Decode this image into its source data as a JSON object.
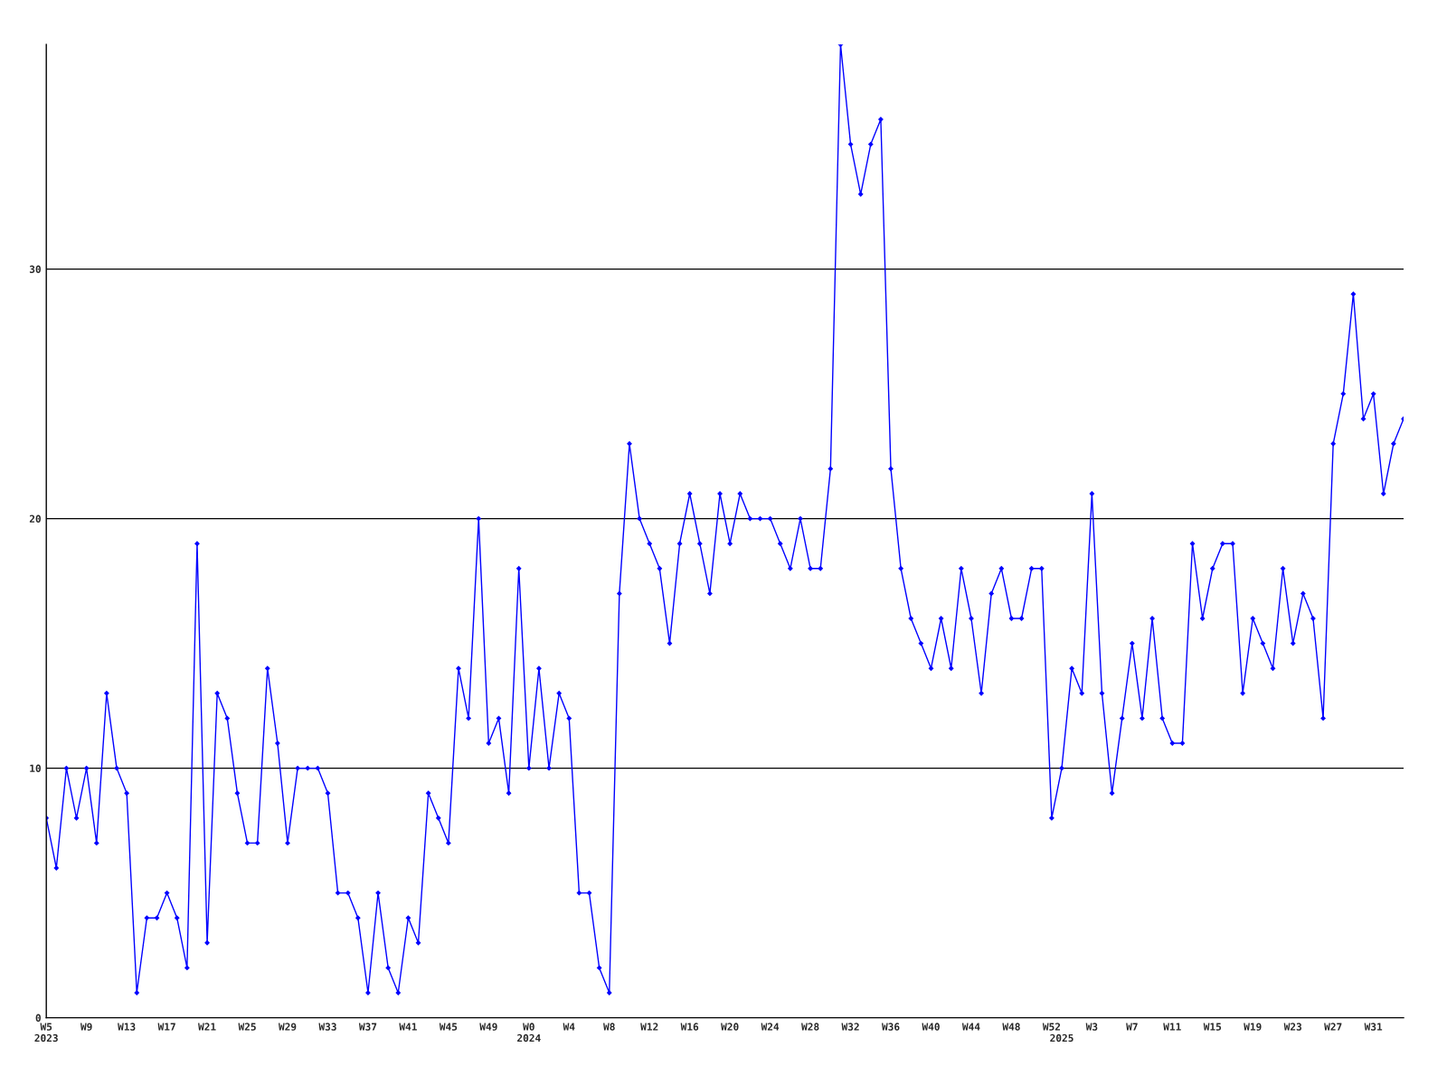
{
  "chart_data": {
    "type": "line",
    "categories": [
      "W5\n2023",
      null,
      null,
      null,
      "W9",
      null,
      null,
      null,
      "W13",
      null,
      null,
      null,
      "W17",
      null,
      null,
      null,
      "W21",
      null,
      null,
      null,
      "W25",
      null,
      null,
      null,
      "W29",
      null,
      null,
      null,
      "W33",
      null,
      null,
      null,
      "W37",
      null,
      null,
      null,
      "W41",
      null,
      null,
      null,
      "W45",
      null,
      null,
      null,
      "W49",
      null,
      null,
      null,
      "W0\n2024",
      null,
      null,
      null,
      "W4",
      null,
      null,
      null,
      "W8",
      null,
      null,
      null,
      "W12",
      null,
      null,
      null,
      "W16",
      null,
      null,
      null,
      "W20",
      null,
      null,
      null,
      "W24",
      null,
      null,
      null,
      "W28",
      null,
      null,
      null,
      "W32",
      null,
      null,
      null,
      "W36",
      null,
      null,
      null,
      "W40",
      null,
      null,
      null,
      "W44",
      null,
      null,
      null,
      "W48",
      null,
      null,
      null,
      "W52",
      "\n2025",
      null,
      null,
      "W3",
      null,
      null,
      null,
      "W7",
      null,
      null,
      null,
      "W11",
      null,
      null,
      null,
      "W15",
      null,
      null,
      null,
      "W19",
      null,
      null,
      null,
      "W23",
      null,
      null,
      null,
      "W27",
      null,
      null,
      null,
      "W31",
      null,
      null,
      null
    ],
    "series": [
      {
        "color": "#0000ff",
        "values": [
          8,
          6,
          10,
          8,
          10,
          7,
          13,
          10,
          9,
          1,
          4,
          4,
          5,
          4,
          2,
          19,
          3,
          13,
          12,
          9,
          7,
          7,
          14,
          11,
          7,
          10,
          10,
          10,
          9,
          5,
          5,
          4,
          1,
          5,
          2,
          1,
          4,
          3,
          9,
          8,
          7,
          14,
          12,
          20,
          11,
          12,
          9,
          18,
          10,
          14,
          10,
          13,
          12,
          5,
          5,
          2,
          1,
          17,
          23,
          20,
          19,
          18,
          15,
          19,
          21,
          19,
          17,
          21,
          19,
          21,
          20,
          20,
          20,
          19,
          18,
          20,
          18,
          18,
          22,
          39,
          35,
          33,
          35,
          36,
          22,
          18,
          16,
          15,
          14,
          16,
          14,
          18,
          16,
          13,
          17,
          18,
          16,
          16,
          18,
          18,
          8,
          10,
          14,
          13,
          21,
          13,
          9,
          12,
          15,
          12,
          16,
          12,
          11,
          11,
          19,
          16,
          18,
          19,
          19,
          13,
          16,
          15,
          14,
          18,
          15,
          17,
          16,
          12,
          23,
          25,
          29,
          24,
          25,
          21,
          23,
          24
        ]
      }
    ],
    "ylim": [
      0,
      39
    ],
    "yticks": [
      0,
      10,
      20,
      30
    ],
    "grid": "y",
    "marker": "diamond",
    "line_style": "solid",
    "legend": false
  }
}
